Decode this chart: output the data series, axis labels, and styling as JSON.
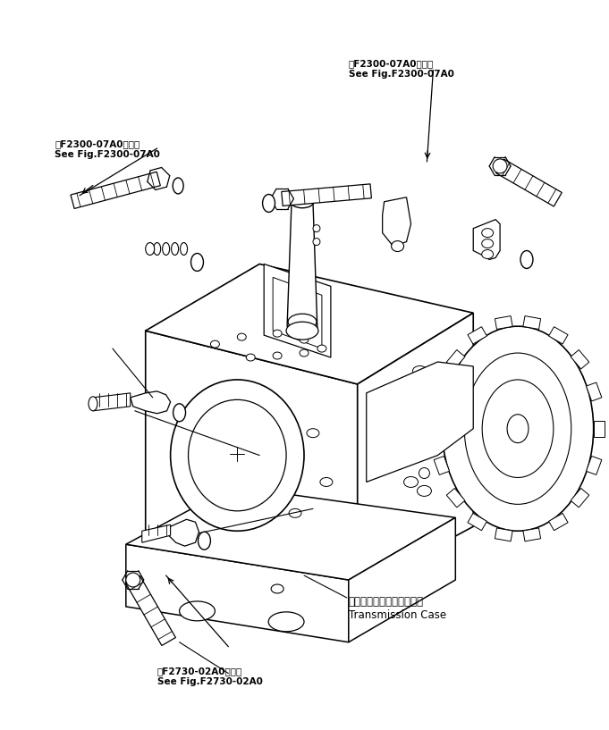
{
  "bg_color": "#ffffff",
  "line_color": "#000000",
  "fig_width": 6.81,
  "fig_height": 8.17,
  "dpi": 100,
  "label_upper_left": "笮F2300-07A0図参照\nSee Fig.F2300-07A0",
  "label_upper_right": "笮F2300-07A0図参照\nSee Fig.F2300-07A0",
  "label_center": "トランスミッションケース\nTransmission Case",
  "label_lower": "笮F2730-02A0図参照\nSee Fig.F2730-02A0"
}
